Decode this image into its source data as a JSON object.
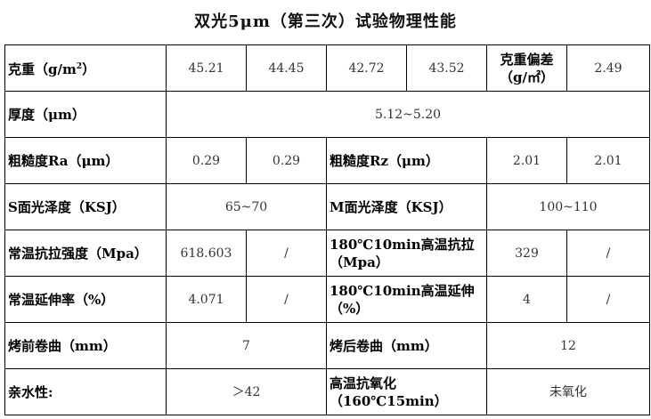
{
  "title": "双光5μm（第三次）试验物理性能",
  "rows": {
    "weight": {
      "label": "克重（g/m",
      "sup": "2",
      "label_end": "）",
      "values": [
        "45.21",
        "44.45",
        "42.72",
        "43.52"
      ],
      "dev_label": "克重偏差（g/㎡）",
      "dev_value": "2.49"
    },
    "thickness": {
      "label": "厚度（μm）",
      "value": "5.12~5.20"
    },
    "roughness": {
      "ra_label": "粗糙度Ra（μm）",
      "ra_values": [
        "0.29",
        "0.29"
      ],
      "rz_label": "粗糙度Rz（μm）",
      "rz_values": [
        "2.01",
        "2.01"
      ]
    },
    "gloss": {
      "s_label": "S面光泽度（KSJ）",
      "s_value": "65~70",
      "m_label": "M面光泽度（KSJ）",
      "m_value": "100~110"
    },
    "tensile": {
      "label": "常温抗拉强度（Mpa）",
      "values": [
        "618.603",
        "/"
      ],
      "hot_label": "180℃10min高温抗拉（Mpa）",
      "hot_values": [
        "329",
        "/"
      ]
    },
    "elongation": {
      "label": "常温延伸率（%）",
      "values": [
        "4.071",
        "/"
      ],
      "hot_label": "180℃10min高温延伸（%）",
      "hot_values": [
        "4",
        "/"
      ]
    },
    "curl": {
      "before_label": "烤前卷曲（mm）",
      "before_value": "7",
      "after_label": "烤后卷曲（mm）",
      "after_value": "12"
    },
    "misc": {
      "hydro_label": "亲水性:",
      "hydro_value": "＞42",
      "oxid_label": "高温抗氧化（160℃15min）",
      "oxid_value": "未氧化"
    }
  }
}
